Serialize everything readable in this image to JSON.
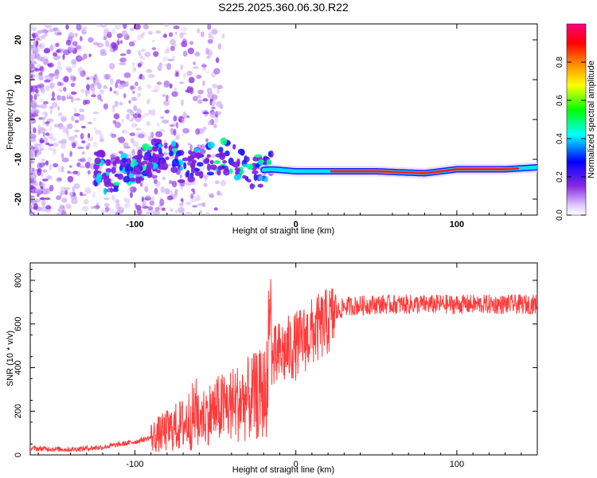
{
  "title": "S225.2025.360.06.30.R22",
  "chart_data": [
    {
      "type": "heatmap",
      "xlabel": "Height of straight line (km)",
      "ylabel": "Frequency (Hz)",
      "xlim": [
        -165,
        150
      ],
      "ylim": [
        -24,
        24
      ],
      "xticks": [
        -100,
        0,
        100
      ],
      "xtick_labels": [
        "-100",
        "0",
        "100"
      ],
      "yticks": [
        -20,
        -10,
        0,
        10,
        20
      ],
      "ytick_labels": [
        "-20",
        "-10",
        "0",
        "10",
        "20"
      ],
      "ridge": [
        {
          "x": -120,
          "y": -15
        },
        {
          "x": -100,
          "y": -12
        },
        {
          "x": -80,
          "y": -8
        },
        {
          "x": -70,
          "y": -12
        },
        {
          "x": -60,
          "y": -11
        },
        {
          "x": -45,
          "y": -9
        },
        {
          "x": -30,
          "y": -13
        },
        {
          "x": -15,
          "y": -12.5
        },
        {
          "x": 0,
          "y": -13
        },
        {
          "x": 20,
          "y": -13
        },
        {
          "x": 50,
          "y": -13
        },
        {
          "x": 80,
          "y": -13.5
        },
        {
          "x": 100,
          "y": -12.5
        },
        {
          "x": 130,
          "y": -12.5
        },
        {
          "x": 150,
          "y": -12
        }
      ],
      "colorbar": {
        "label": "Normalized spectral amplitude",
        "range": [
          0,
          1
        ],
        "ticks": [
          0.0,
          0.2,
          0.4,
          0.6,
          0.8
        ],
        "tick_labels": [
          "0.0",
          "0.2",
          "0.4",
          "0.6",
          "0.8"
        ],
        "colors": [
          "#ffffff",
          "#8a2be2",
          "#0000ff",
          "#00ffff",
          "#00ff00",
          "#ffff00",
          "#ff8000",
          "#ff0000",
          "#ff0080"
        ]
      }
    },
    {
      "type": "line",
      "xlabel": "Height of straight line (km)",
      "ylabel": "SNR (10 * v/v)",
      "xlim": [
        -165,
        150
      ],
      "ylim": [
        0,
        880
      ],
      "xticks": [
        -100,
        0,
        100
      ],
      "xtick_labels": [
        "-100",
        "0",
        "100"
      ],
      "yticks": [
        0,
        200,
        400,
        600,
        800
      ],
      "ytick_labels": [
        "0",
        "200",
        "400",
        "600",
        "800"
      ],
      "color": "#ff3b3b",
      "series": [
        {
          "name": "SNR",
          "x": [
            -165,
            -140,
            -120,
            -100,
            -90,
            -80,
            -70,
            -60,
            -50,
            -40,
            -30,
            -20,
            -15,
            -10,
            0,
            10,
            20,
            25,
            30,
            50,
            70,
            90,
            110,
            130,
            150
          ],
          "y": [
            30,
            25,
            35,
            60,
            80,
            110,
            140,
            200,
            240,
            270,
            300,
            330,
            420,
            460,
            500,
            560,
            610,
            650,
            680,
            690,
            690,
            690,
            690,
            690,
            690
          ]
        }
      ]
    }
  ]
}
